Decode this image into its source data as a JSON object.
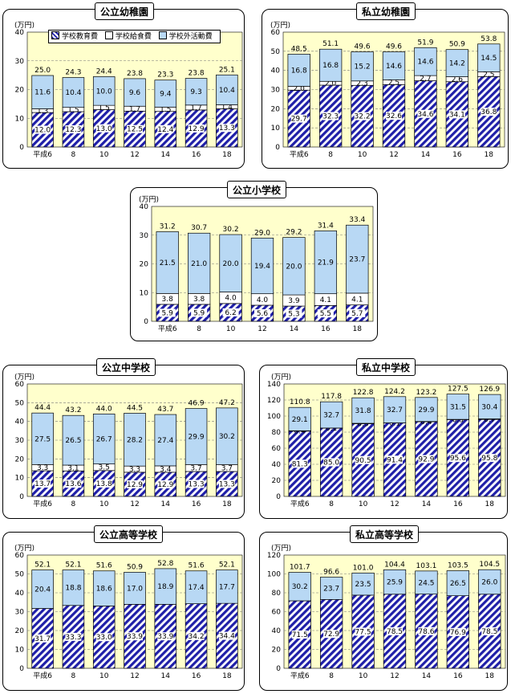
{
  "legend": {
    "education": "学校教育費",
    "meal": "学校給食費",
    "outside": "学校外活動費"
  },
  "colors": {
    "plot_bg": "#ffffcc",
    "education": "#1f1fa8",
    "outside": "#b8d8f4",
    "meal": "#ffffff"
  },
  "chart_data": [
    {
      "title": "公立幼稚園",
      "type": "bar",
      "stacked": true,
      "ylabel": "(万円)",
      "ylim": [
        0,
        40
      ],
      "yticks": [
        0,
        10,
        20,
        30,
        40
      ],
      "categories": [
        "平成6",
        "8",
        "10",
        "12",
        "14",
        "16",
        "18"
      ],
      "series": [
        {
          "name": "学校教育費",
          "values": [
            "12.0",
            "12.3",
            "13.0",
            "12.5",
            "12.4",
            "12.9",
            "13.3"
          ]
        },
        {
          "name": "学校給食費",
          "values": [
            "1.3",
            "1.5",
            "1.5",
            "1.7",
            "1.5",
            "1.7",
            "1.4"
          ]
        },
        {
          "name": "学校外活動費",
          "values": [
            "11.6",
            "10.4",
            "10.0",
            "9.6",
            "9.4",
            "9.3",
            "10.4"
          ]
        }
      ],
      "totals": [
        "25.0",
        "24.3",
        "24.4",
        "23.8",
        "23.3",
        "23.8",
        "25.1"
      ]
    },
    {
      "title": "私立幼稚園",
      "type": "bar",
      "stacked": true,
      "ylabel": "(万円)",
      "ylim": [
        0,
        60
      ],
      "yticks": [
        0,
        10,
        20,
        30,
        40,
        50,
        60
      ],
      "categories": [
        "平成6",
        "8",
        "10",
        "12",
        "14",
        "16",
        "18"
      ],
      "series": [
        {
          "name": "学校教育費",
          "values": [
            "29.7",
            "32.3",
            "32.2",
            "32.6",
            "34.6",
            "34.1",
            "36.8"
          ]
        },
        {
          "name": "学校給食費",
          "values": [
            "2.0",
            "2.0",
            "2.3",
            "2.5",
            "2.7",
            "2.6",
            "2.5"
          ]
        },
        {
          "name": "学校外活動費",
          "values": [
            "16.8",
            "16.8",
            "15.2",
            "14.6",
            "14.6",
            "14.2",
            "14.5"
          ]
        }
      ],
      "totals": [
        "48.5",
        "51.1",
        "49.6",
        "49.6",
        "51.9",
        "50.9",
        "53.8"
      ]
    },
    {
      "title": "公立小学校",
      "type": "bar",
      "stacked": true,
      "ylabel": "(万円)",
      "ylim": [
        0,
        40
      ],
      "yticks": [
        0,
        10,
        20,
        30,
        40
      ],
      "categories": [
        "平成6",
        "8",
        "10",
        "12",
        "14",
        "16",
        "18"
      ],
      "series": [
        {
          "name": "学校教育費",
          "values": [
            "5.9",
            "5.9",
            "6.2",
            "5.6",
            "5.3",
            "5.5",
            "5.7"
          ]
        },
        {
          "name": "学校給食費",
          "values": [
            "3.8",
            "3.8",
            "4.0",
            "4.0",
            "3.9",
            "4.1",
            "4.1"
          ]
        },
        {
          "name": "学校外活動費",
          "values": [
            "21.5",
            "21.0",
            "20.0",
            "19.4",
            "20.0",
            "21.9",
            "23.7"
          ]
        }
      ],
      "totals": [
        "31.2",
        "30.7",
        "30.2",
        "29.0",
        "29.2",
        "31.4",
        "33.4"
      ]
    },
    {
      "title": "公立中学校",
      "type": "bar",
      "stacked": true,
      "ylabel": "(万円)",
      "ylim": [
        0,
        60
      ],
      "yticks": [
        0,
        10,
        20,
        30,
        40,
        50,
        60
      ],
      "categories": [
        "平成6",
        "8",
        "10",
        "12",
        "14",
        "16",
        "18"
      ],
      "series": [
        {
          "name": "学校教育費",
          "values": [
            "13.7",
            "13.6",
            "13.8",
            "12.9",
            "12.9",
            "13.3",
            "13.3"
          ]
        },
        {
          "name": "学校給食費",
          "values": [
            "3.3",
            "3.1",
            "3.5",
            "3.3",
            "3.4",
            "3.7",
            "3.7"
          ]
        },
        {
          "name": "学校外活動費",
          "values": [
            "27.5",
            "26.5",
            "26.7",
            "28.2",
            "27.4",
            "29.9",
            "30.2"
          ]
        }
      ],
      "totals": [
        "44.4",
        "43.2",
        "44.0",
        "44.5",
        "43.7",
        "46.9",
        "47.2"
      ]
    },
    {
      "title": "私立中学校",
      "type": "bar",
      "stacked": true,
      "ylabel": "(万円)",
      "ylim": [
        0,
        140
      ],
      "yticks": [
        0,
        20,
        40,
        60,
        80,
        100,
        120,
        140
      ],
      "categories": [
        "平成6",
        "8",
        "10",
        "12",
        "14",
        "16",
        "18"
      ],
      "series": [
        {
          "name": "学校教育費",
          "values": [
            "81.3",
            "85.0",
            "90.5",
            "91.4",
            "92.9",
            "95.6",
            "95.8"
          ]
        },
        {
          "name": "学校給食費",
          "values": [
            "0.4",
            "0.1",
            "0.5",
            "0.1",
            "0.4",
            "0.3",
            "0.7"
          ]
        },
        {
          "name": "学校外活動費",
          "values": [
            "29.1",
            "32.7",
            "31.8",
            "32.7",
            "29.9",
            "31.5",
            "30.4"
          ]
        }
      ],
      "totals": [
        "110.8",
        "117.8",
        "122.8",
        "124.2",
        "123.2",
        "127.5",
        "126.9"
      ]
    },
    {
      "title": "公立高等学校",
      "type": "bar",
      "stacked": true,
      "ylabel": "(万円)",
      "ylim": [
        0,
        60
      ],
      "yticks": [
        0,
        10,
        20,
        30,
        40,
        50,
        60
      ],
      "categories": [
        "平成6",
        "8",
        "10",
        "12",
        "14",
        "16",
        "18"
      ],
      "series": [
        {
          "name": "学校教育費",
          "values": [
            "31.7",
            "33.3",
            "33.0",
            "33.9",
            "33.9",
            "34.2",
            "34.4"
          ]
        },
        {
          "name": "学校外活動費",
          "values": [
            "20.4",
            "18.8",
            "18.6",
            "17.0",
            "18.9",
            "17.4",
            "17.7"
          ]
        }
      ],
      "totals": [
        "52.1",
        "52.1",
        "51.6",
        "50.9",
        "52.8",
        "51.6",
        "52.1"
      ]
    },
    {
      "title": "私立高等学校",
      "type": "bar",
      "stacked": true,
      "ylabel": "(万円)",
      "ylim": [
        0,
        120
      ],
      "yticks": [
        0,
        20,
        40,
        60,
        80,
        100,
        120
      ],
      "categories": [
        "平成6",
        "8",
        "10",
        "12",
        "14",
        "16",
        "18"
      ],
      "series": [
        {
          "name": "学校教育費",
          "values": [
            "71.5",
            "72.9",
            "77.5",
            "78.5",
            "78.6",
            "76.9",
            "78.5"
          ]
        },
        {
          "name": "学校外活動費",
          "values": [
            "30.2",
            "23.7",
            "23.5",
            "25.9",
            "24.5",
            "26.5",
            "26.0"
          ]
        }
      ],
      "totals": [
        "101.7",
        "96.6",
        "101.0",
        "104.4",
        "103.1",
        "103.5",
        "104.5"
      ]
    }
  ]
}
